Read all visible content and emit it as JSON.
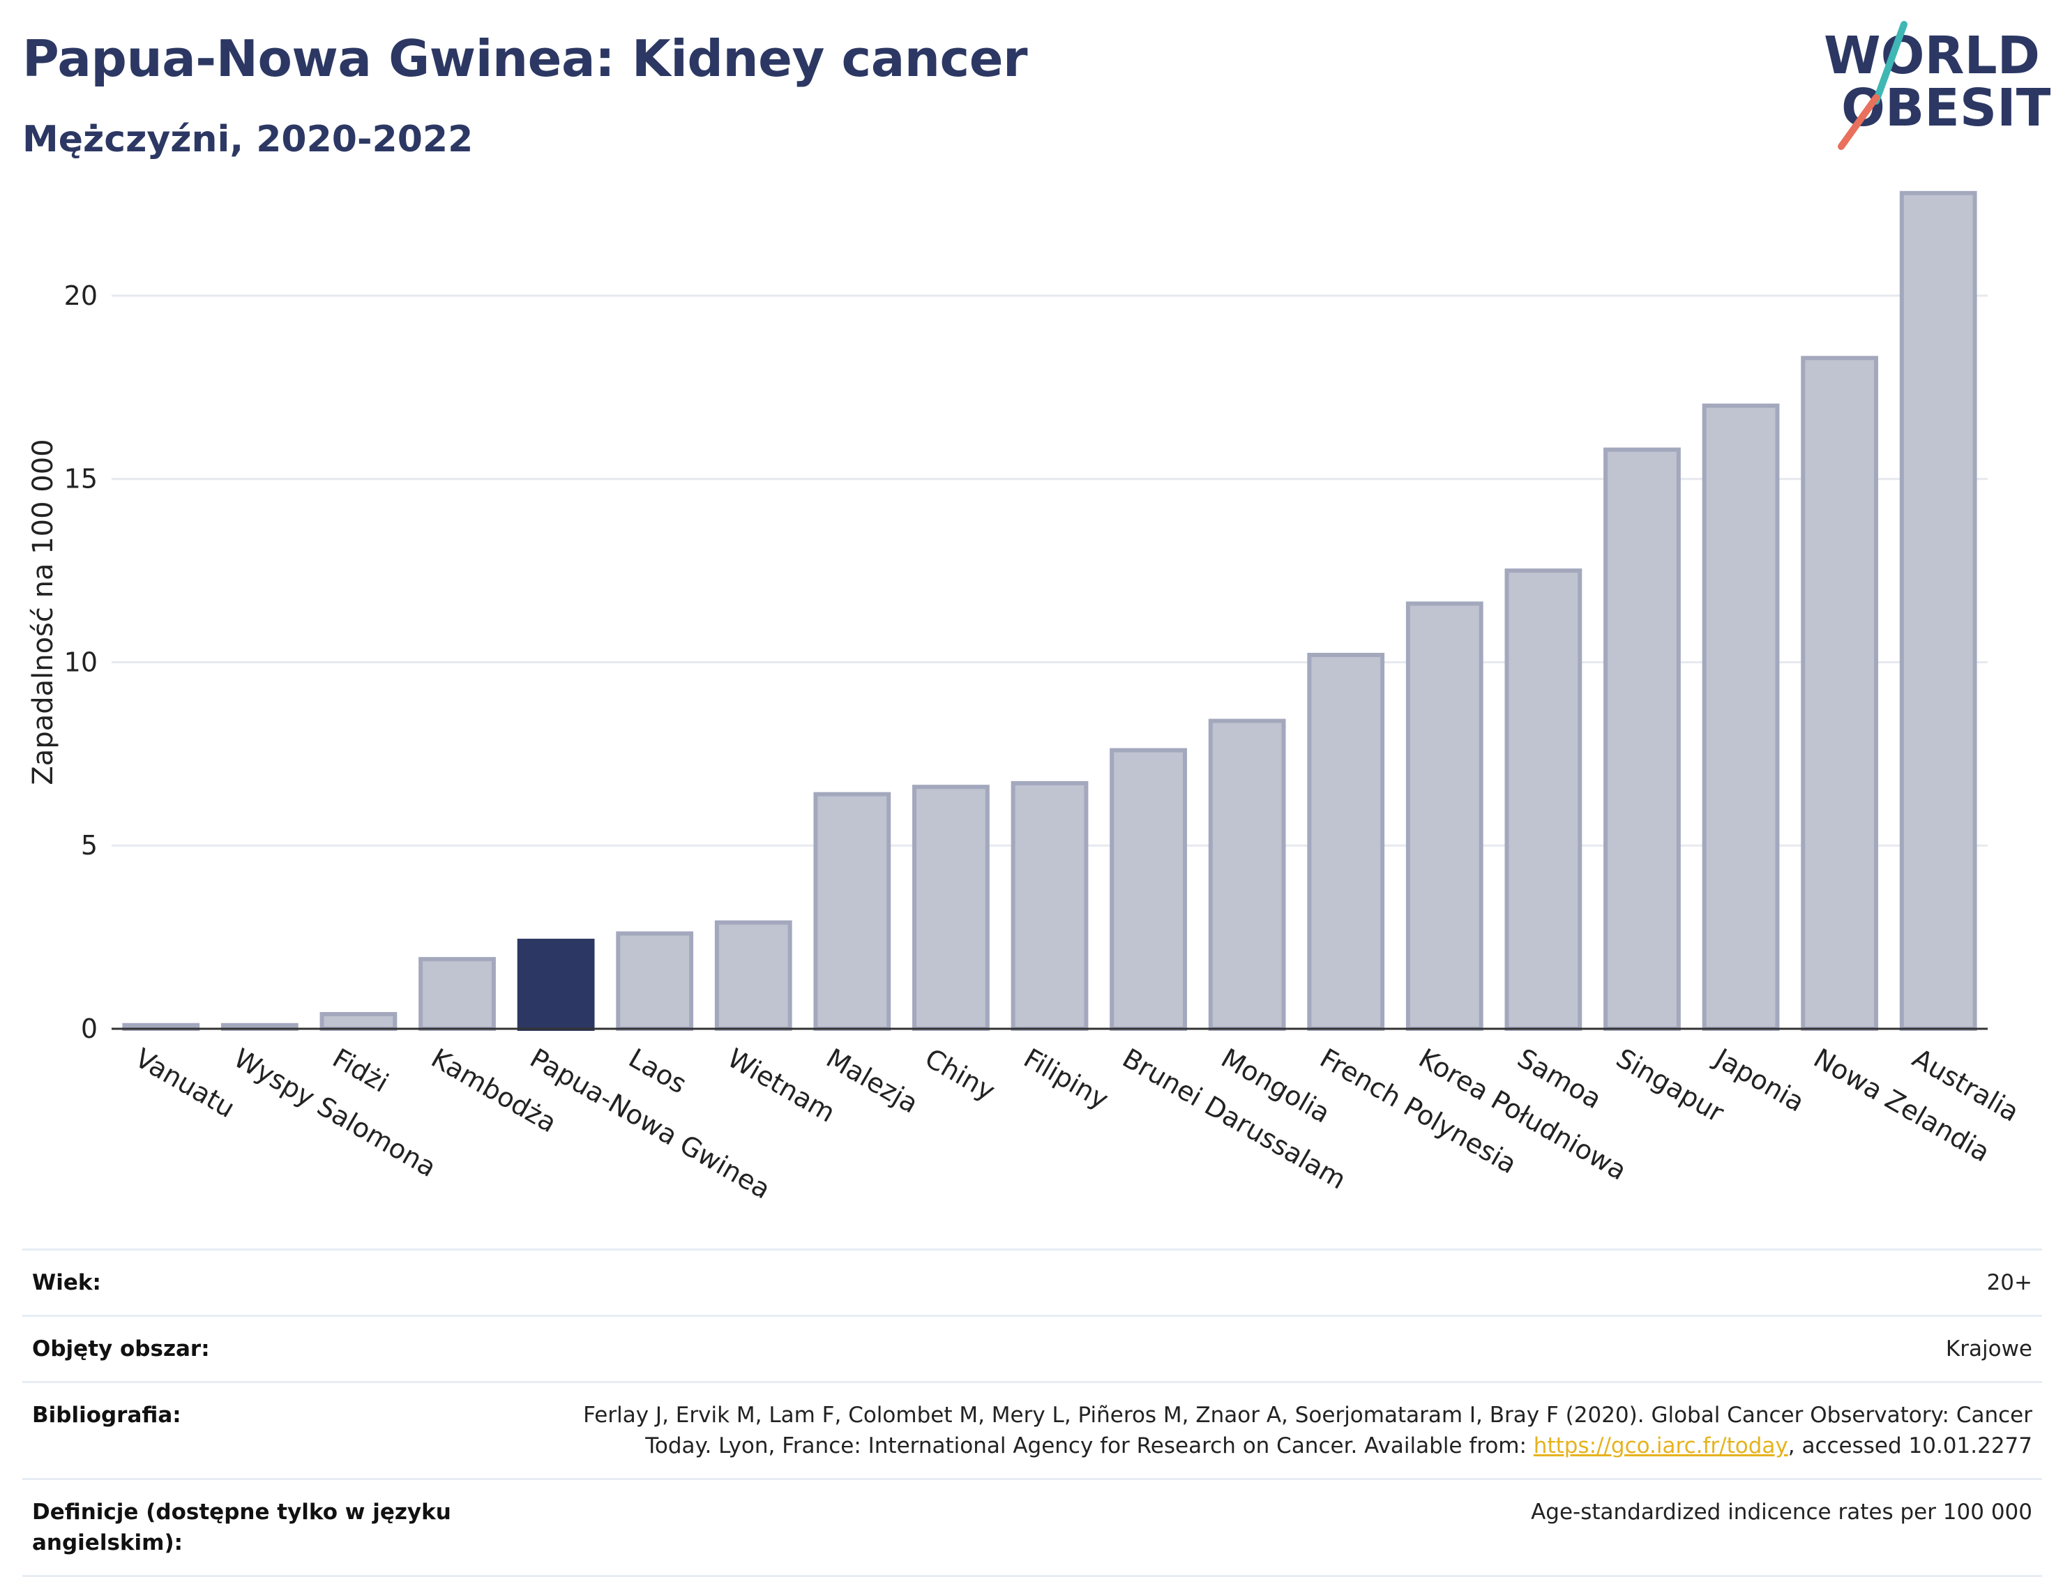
{
  "header": {
    "title": "Papua-Nowa Gwinea: Kidney cancer",
    "subtitle": "Mężczyźni, 2020-2022"
  },
  "logo": {
    "line1": "WORLD",
    "line2": "OBESITY"
  },
  "colors": {
    "highlight": "#2c3863",
    "bar": "#c0c3d0",
    "bar_border": "#a3a8bd",
    "gridline": "#e6e9ef",
    "logo_slash_red": "#e8705c",
    "logo_slash_teal": "#3fb7b4"
  },
  "chart_data": {
    "type": "bar",
    "ylabel": "Zapadalność na 100 000",
    "ylim": [
      0,
      23.5
    ],
    "yticks": [
      0,
      5,
      10,
      15,
      20
    ],
    "grid": true,
    "highlight": "Papua-Nowa Gwinea",
    "categories": [
      "Vanuatu",
      "Wyspy Salomona",
      "Fidżi",
      "Kambodża",
      "Papua-Nowa Gwinea",
      "Laos",
      "Wietnam",
      "Malezja",
      "Chiny",
      "Filipiny",
      "Brunei Darussalam",
      "Mongolia",
      "French Polynesia",
      "Korea Południowa",
      "Samoa",
      "Singapur",
      "Japonia",
      "Nowa Zelandia",
      "Australia"
    ],
    "values": [
      0.1,
      0.1,
      0.4,
      1.9,
      2.4,
      2.6,
      2.9,
      6.4,
      6.6,
      6.7,
      7.6,
      8.4,
      10.2,
      11.6,
      12.5,
      15.8,
      17.0,
      18.3,
      22.8
    ]
  },
  "meta": {
    "rows": [
      {
        "key": "Wiek:",
        "value": "20+"
      },
      {
        "key": "Objęty obszar:",
        "value": "Krajowe"
      },
      {
        "key": "Bibliografia:",
        "value_pre": "Ferlay J, Ervik M, Lam F, Colombet M, Mery L, Piñeros M, Znaor A, Soerjomataram I, Bray F (2020). Global Cancer Observatory: Cancer Today. Lyon, France: International Agency for Research on Cancer. Available from: ",
        "link": "https://gco.iarc.fr/today",
        "value_post": ", accessed 10.01.2277"
      },
      {
        "key": "Definicje (dostępne tylko w języku angielskim):",
        "value": "Age-standardized indicence rates per 100 000"
      }
    ]
  }
}
